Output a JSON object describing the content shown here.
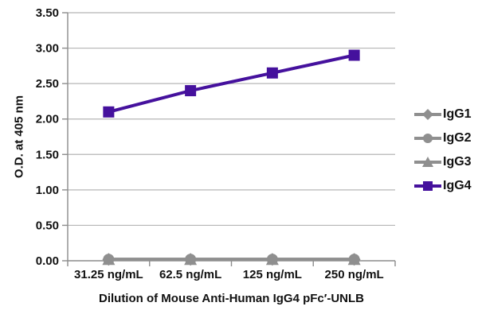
{
  "chart_data": {
    "type": "line",
    "title": "",
    "xlabel": "Dilution of Mouse Anti-Human IgG4 pFc′-UNLB",
    "ylabel": "O.D. at 405 nm",
    "categories": [
      "31.25 ng/mL",
      "62.5 ng/mL",
      "125 ng/mL",
      "250 ng/mL"
    ],
    "ylim": [
      0,
      3.5
    ],
    "ytick_values": [
      0,
      0.5,
      1.0,
      1.5,
      2.0,
      2.5,
      3.0,
      3.5
    ],
    "ytick_labels": [
      "0.00",
      "0.50",
      "1.00",
      "1.50",
      "2.00",
      "2.50",
      "3.00",
      "3.50"
    ],
    "grid": true,
    "legend_position": "right",
    "series": [
      {
        "name": "IgG1",
        "marker": "diamond",
        "color": "#8f8f8f",
        "values": [
          0.02,
          0.02,
          0.02,
          0.02
        ]
      },
      {
        "name": "IgG2",
        "marker": "circle",
        "color": "#8f8f8f",
        "values": [
          0.02,
          0.02,
          0.02,
          0.02
        ]
      },
      {
        "name": "IgG3",
        "marker": "triangle",
        "color": "#8f8f8f",
        "values": [
          0.02,
          0.02,
          0.02,
          0.02
        ]
      },
      {
        "name": "IgG4",
        "marker": "square",
        "color": "#45119d",
        "values": [
          2.1,
          2.4,
          2.65,
          2.9
        ]
      }
    ],
    "colors": {
      "gridline": "#b5b5b5",
      "axis": "#8c8c8c",
      "text": "#111111",
      "background": "#ffffff"
    }
  }
}
